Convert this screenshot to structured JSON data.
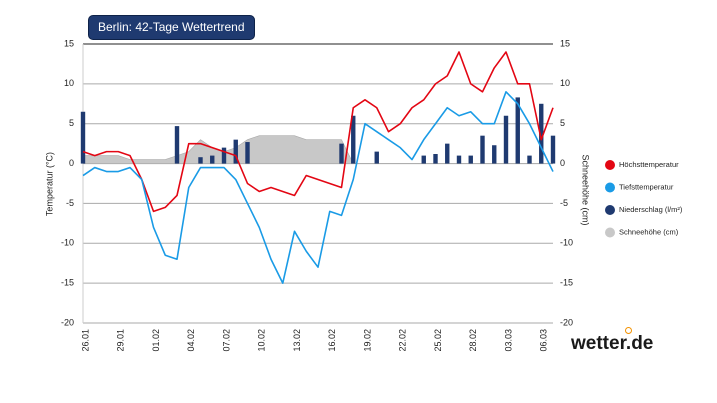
{
  "chart_data": {
    "type": "line",
    "title": "Berlin: 42-Tage Wettertrend",
    "logo": "wetter.de",
    "y_label": "Temperatur (°C)",
    "y2_label": "Schneehöhe (cm)",
    "categories": [
      "26.01",
      null,
      null,
      "29.01",
      null,
      null,
      "01.02",
      null,
      null,
      "04.02",
      null,
      null,
      "07.02",
      null,
      null,
      "10.02",
      null,
      null,
      "13.02",
      null,
      null,
      "16.02",
      null,
      null,
      "19.02",
      null,
      null,
      "22.02",
      null,
      null,
      "25.02",
      null,
      null,
      "28.02",
      null,
      null,
      "03.03",
      null,
      null,
      "06.03",
      null
    ],
    "ylim": [
      -20,
      15
    ],
    "yticks": [
      -20,
      -15,
      -10,
      -5,
      0,
      5,
      10,
      15
    ],
    "y2lim": [
      -20,
      15
    ],
    "y2ticks": [
      -20,
      -15,
      -10,
      -5,
      0,
      5,
      10,
      15
    ],
    "grid": true,
    "legend": "right",
    "series": [
      {
        "name": "Höchsttemperatur",
        "kind": "line",
        "color": "#e30613",
        "values": [
          1.5,
          1,
          1.5,
          1.5,
          1,
          -2,
          -6,
          -5.5,
          -4,
          2.5,
          2.5,
          2,
          1.5,
          1,
          -2.5,
          -3.5,
          -3,
          -3.5,
          -4,
          -1.5,
          -2,
          -2.5,
          -3,
          7,
          8,
          7,
          4,
          5,
          7,
          8,
          10,
          11,
          14,
          10,
          9,
          12,
          14,
          10,
          10,
          3,
          7
        ]
      },
      {
        "name": "Tiefsttemperatur",
        "kind": "line",
        "color": "#1a9be6",
        "values": [
          -1.5,
          -0.5,
          -1,
          -1,
          -0.5,
          -2,
          -8,
          -11.5,
          -12,
          -3,
          -0.5,
          -0.5,
          -0.5,
          -2,
          -5,
          -8,
          -12,
          -15,
          -8.5,
          -11,
          -13,
          -6,
          -6.5,
          -2,
          5,
          4,
          3,
          2,
          0.5,
          3,
          5,
          7,
          6,
          6.5,
          5,
          5,
          9,
          7.5,
          5,
          2,
          -1
        ]
      },
      {
        "name": "Niederschlag (l/m²)",
        "kind": "bar",
        "axis": "y2",
        "color": "#1f3a70",
        "values": [
          6.5,
          0,
          0,
          0,
          0,
          0,
          0,
          0,
          4.7,
          0,
          0.8,
          1,
          2,
          3,
          2.7,
          0,
          0,
          0,
          0,
          0,
          0,
          0,
          2.5,
          6,
          0,
          1.5,
          0,
          0,
          0,
          1,
          1.2,
          2.5,
          1,
          1,
          3.5,
          2.3,
          6,
          8.3,
          1,
          7.5,
          3.5
        ]
      },
      {
        "name": "Schneehöhe (cm)",
        "kind": "area",
        "axis": "y2",
        "color": "#c8c8c8",
        "values": [
          1,
          1,
          1,
          1,
          0.5,
          0.5,
          0.5,
          0.5,
          1,
          1.5,
          3,
          2,
          1.5,
          2,
          3,
          3.5,
          3.5,
          3.5,
          3.5,
          3,
          3,
          3,
          3,
          0,
          0,
          0,
          0,
          0,
          0,
          0,
          0,
          0,
          0,
          0,
          0,
          0,
          0,
          0,
          0,
          0,
          0
        ]
      }
    ]
  }
}
